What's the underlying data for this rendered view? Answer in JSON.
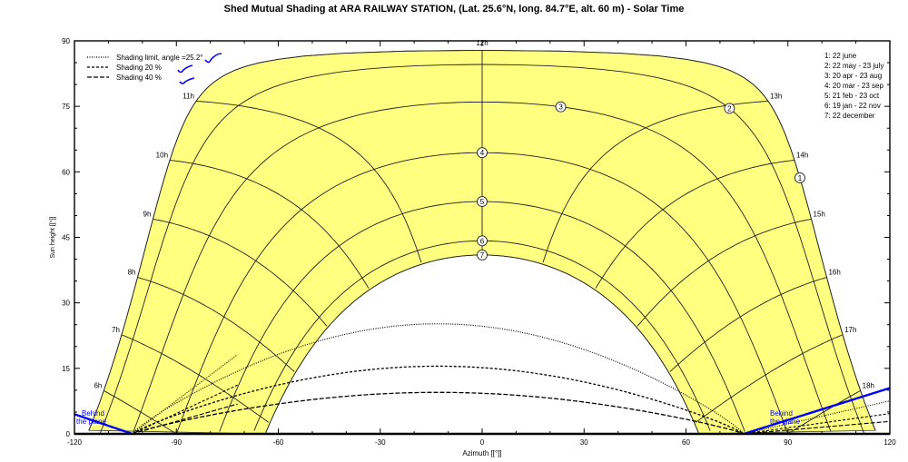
{
  "title": "Shed Mutual Shading at  ARA RAILWAY STATION, (Lat. 25.6°N, long. 84.7°E, alt. 60 m) - Solar Time",
  "chart_data": {
    "type": "line",
    "title": "Shed Mutual Shading at  ARA RAILWAY STATION, (Lat. 25.6°N, long. 84.7°E, alt. 60 m) - Solar Time",
    "xlabel": "Azimuth [[°]]",
    "ylabel": "Sun height [[°]]",
    "xlim": [
      -120,
      120
    ],
    "ylim": [
      0,
      90
    ],
    "xticks": [
      -120,
      -90,
      -60,
      -30,
      0,
      30,
      60,
      90,
      120
    ],
    "yticks": [
      0,
      15,
      30,
      45,
      60,
      75,
      90
    ],
    "grid": false,
    "latitude": 25.6,
    "fill_color": "#ffff80",
    "sun_paths": [
      {
        "id": "1",
        "label": "1: 22 june",
        "declination": 23.44
      },
      {
        "id": "2",
        "label": "2: 22 may - 23 july",
        "declination": 20.2
      },
      {
        "id": "3",
        "label": "3: 20 apr - 23 aug",
        "declination": 11.6
      },
      {
        "id": "4",
        "label": "4: 20 mar - 23 sep",
        "declination": 0.0
      },
      {
        "id": "5",
        "label": "5: 21 feb - 23 oct",
        "declination": -11.2
      },
      {
        "id": "6",
        "label": "6: 19 jan - 22 nov",
        "declination": -20.2
      },
      {
        "id": "7",
        "label": "7: 22 december",
        "declination": -23.44
      }
    ],
    "hour_labels": [
      "6h",
      "7h",
      "8h",
      "9h",
      "10h",
      "11h",
      "12h",
      "13h",
      "14h",
      "15h",
      "16h",
      "17h",
      "18h"
    ],
    "shading_curves": [
      {
        "name": "Shading limit, angle =25.2°",
        "style": "dotted",
        "peak_height": 25.2,
        "azimuth_range": [
          -103,
          77
        ],
        "peak_azimuth": -13
      },
      {
        "name": "Shading 20 %",
        "style": "dashed",
        "peak_height": 15.5,
        "azimuth_range": [
          -103,
          77
        ],
        "peak_azimuth": -13
      },
      {
        "name": "Shading 40 %",
        "style": "long-dashed",
        "peak_height": 9.5,
        "azimuth_range": [
          -103,
          77
        ],
        "peak_azimuth": -13
      }
    ],
    "plane_lines": [
      {
        "label": "Behind the plane",
        "points": [
          [
            -120,
            4.5
          ],
          [
            -103,
            0
          ]
        ]
      },
      {
        "label": "Behind the plane",
        "points": [
          [
            77,
            0
          ],
          [
            120,
            10.5
          ]
        ]
      }
    ],
    "legend_position": "top-left",
    "date_legend_position": "top-right"
  },
  "legend": {
    "items": [
      {
        "label": "Shading limit, angle =25.2°",
        "dash": "1,1.5"
      },
      {
        "label": "Shading 20 %",
        "dash": "3,2"
      },
      {
        "label": "Shading 40 %",
        "dash": "5,2"
      }
    ]
  },
  "date_legend": [
    "1: 22 june",
    "2: 22 may - 23 july",
    "3: 20 apr - 23 aug",
    "4: 20 mar - 23 sep",
    "5: 21 feb - 23 oct",
    "6: 19 jan - 22 nov",
    "7: 22 december"
  ],
  "plane_label": {
    "line1": "Behind",
    "line2": "the plane"
  },
  "colors": {
    "fill": "#ffff80",
    "plane_line": "#0000ff",
    "annotation": "#0000ff"
  }
}
